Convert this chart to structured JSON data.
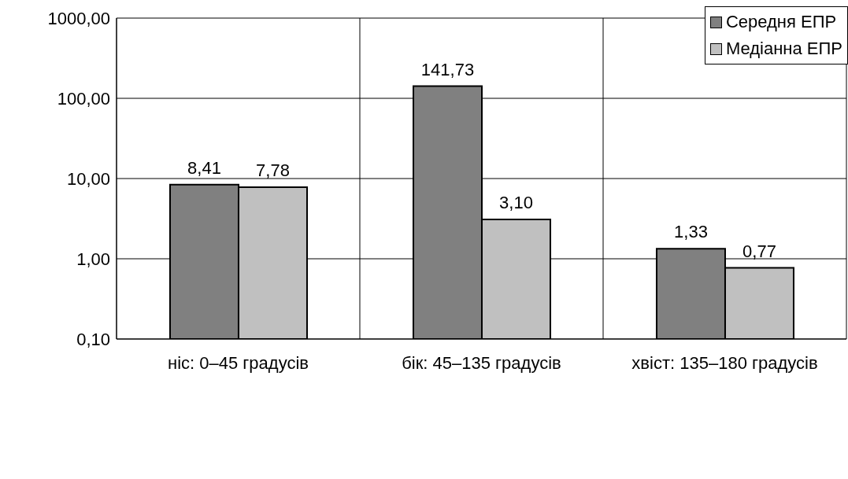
{
  "chart_data": {
    "type": "bar",
    "categories": [
      "ніс: 0–45 градусів",
      "бік: 45–135 градусів",
      "хвіст: 135–180 градусів"
    ],
    "series": [
      {
        "name": "Середня ЕПР",
        "color": "#808080",
        "values": [
          8.41,
          141.73,
          1.33
        ],
        "value_labels": [
          "8,41",
          "141,73",
          "1,33"
        ]
      },
      {
        "name": "Медіанна ЕПР",
        "color": "#c0c0c0",
        "values": [
          7.78,
          3.1,
          0.77
        ],
        "value_labels": [
          "7,78",
          "3,10",
          "0,77"
        ]
      }
    ],
    "log": true,
    "ylim": [
      0.1,
      1000
    ],
    "yticks": [
      {
        "value": 0.1,
        "label": "0,10"
      },
      {
        "value": 1,
        "label": "1,00"
      },
      {
        "value": 10,
        "label": "10,00"
      },
      {
        "value": 100,
        "label": "100,00"
      },
      {
        "value": 1000,
        "label": "1000,00"
      }
    ],
    "grid": true,
    "legend": "top right"
  }
}
